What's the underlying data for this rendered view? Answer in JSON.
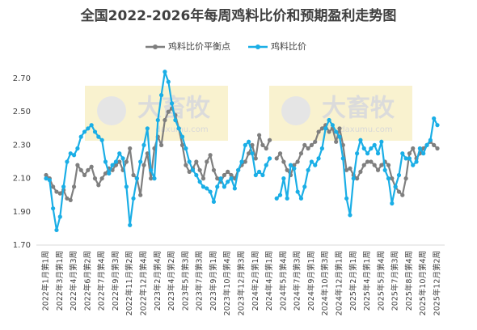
{
  "chart_data": {
    "type": "line",
    "title": "全国2022-2026年每周鸡料比价和预期盈利走势图",
    "watermark": [
      "大畜牧",
      "daxumu.com"
    ],
    "categories": [
      "2022年1月第1周",
      null,
      null,
      null,
      "2022年3月第1周",
      null,
      null,
      null,
      "2022年4月第3周",
      null,
      null,
      null,
      "2022年6月第2周",
      null,
      null,
      null,
      "2022年7月第4周",
      null,
      null,
      null,
      "2022年9月第3周",
      null,
      null,
      null,
      "2022年11月第2周",
      null,
      null,
      null,
      "2022年12月第4周",
      null,
      null,
      null,
      "2023年2月第4周",
      null,
      null,
      null,
      "2023年4月第2周",
      null,
      null,
      null,
      "2023年5月第3周",
      null,
      null,
      null,
      "2023年7月第3周",
      null,
      null,
      null,
      "2023年9月第1周",
      null,
      null,
      null,
      "2023年10月第4周",
      null,
      null,
      null,
      "2023年12月第3周",
      null,
      null,
      null,
      "2024年2月第1周",
      null,
      null,
      null,
      "2024年4月第1周",
      null,
      null,
      null,
      "2024年5月第4周",
      null,
      null,
      null,
      "2024年7月第3周",
      null,
      null,
      null,
      "2024年9月第1周",
      null,
      null,
      null,
      "2024年10月第3周",
      null,
      null,
      null,
      "2024年12月第1周",
      null,
      null,
      null,
      "2025年2月第1周",
      null,
      null,
      null,
      "2025年4月第1周",
      null,
      null,
      null,
      "2025年5月第4周",
      null,
      null,
      null,
      "2025年7月第3周",
      null,
      null,
      null,
      "2025年8月第4周",
      null,
      null,
      null,
      "2025年10月第4周",
      null,
      null,
      null,
      "2025年12月第2周"
    ],
    "series": [
      {
        "name": "鸡料比价平衡点",
        "color": "#7f7f7f",
        "values": [
          2.12,
          2.1,
          2.05,
          2.02,
          2.01,
          2.03,
          1.98,
          1.97,
          2.05,
          2.18,
          2.15,
          2.12,
          2.15,
          2.17,
          2.1,
          2.06,
          2.1,
          2.13,
          2.16,
          2.15,
          2.18,
          2.2,
          2.15,
          2.2,
          2.28,
          2.12,
          2.1,
          2.0,
          2.18,
          2.25,
          2.1,
          2.28,
          2.35,
          2.3,
          2.45,
          2.5,
          2.52,
          2.48,
          2.4,
          2.3,
          2.18,
          2.14,
          2.16,
          2.2,
          2.15,
          2.1,
          2.2,
          2.24,
          2.15,
          2.1,
          2.08,
          2.12,
          2.14,
          2.12,
          2.1,
          2.15,
          2.18,
          2.2,
          2.25,
          2.3,
          2.22,
          2.36,
          2.3,
          2.28,
          2.33,
          null,
          2.22,
          2.25,
          2.2,
          2.15,
          2.12,
          2.18,
          2.2,
          2.25,
          2.3,
          2.28,
          2.3,
          2.32,
          2.38,
          2.4,
          2.42,
          2.38,
          2.4,
          2.32,
          2.4,
          2.3,
          2.15,
          2.16,
          2.12,
          2.1,
          2.14,
          2.18,
          2.2,
          2.2,
          2.18,
          2.15,
          2.18,
          2.2,
          2.18,
          2.1,
          2.05,
          2.02,
          2.0,
          2.1,
          2.25,
          2.28,
          2.22,
          2.25,
          2.28,
          2.3,
          2.32,
          2.3,
          2.28
        ]
      },
      {
        "name": "鸡料比价",
        "color": "#1aaee6",
        "values": [
          2.1,
          2.09,
          1.92,
          1.79,
          1.87,
          2.05,
          2.2,
          2.25,
          2.24,
          2.28,
          2.35,
          2.38,
          2.4,
          2.42,
          2.38,
          2.35,
          2.33,
          2.2,
          2.13,
          2.18,
          2.2,
          2.25,
          2.22,
          2.05,
          1.82,
          1.98,
          2.1,
          2.2,
          2.3,
          2.4,
          2.15,
          2.1,
          2.45,
          2.6,
          2.74,
          2.68,
          2.55,
          2.45,
          2.4,
          2.35,
          2.28,
          2.2,
          2.15,
          2.12,
          2.08,
          2.05,
          2.04,
          2.02,
          1.96,
          2.05,
          2.1,
          2.05,
          2.08,
          2.1,
          2.04,
          2.15,
          2.2,
          2.3,
          2.32,
          2.25,
          2.12,
          2.14,
          2.12,
          2.18,
          2.22,
          null,
          1.98,
          2.0,
          2.1,
          1.98,
          2.18,
          2.16,
          2.02,
          1.98,
          2.05,
          2.15,
          2.2,
          2.18,
          2.22,
          2.28,
          2.4,
          2.45,
          2.42,
          2.38,
          2.35,
          2.22,
          1.98,
          1.88,
          2.1,
          2.25,
          2.33,
          2.28,
          2.25,
          2.28,
          2.3,
          2.25,
          2.32,
          2.15,
          2.1,
          1.95,
          2.05,
          2.12,
          2.25,
          2.22,
          2.22,
          2.18,
          2.2,
          2.28,
          2.25,
          2.3,
          2.33,
          2.46,
          2.42
        ]
      }
    ],
    "ylim": [
      1.7,
      2.7
    ],
    "yticks": [
      {
        "value": 1.7,
        "label": "1.70"
      },
      {
        "value": 1.9,
        "label": "1.90"
      },
      {
        "value": 2.1,
        "label": "2.10"
      },
      {
        "value": 2.3,
        "label": "2.30"
      },
      {
        "value": 2.5,
        "label": "2.50"
      },
      {
        "value": 2.7,
        "label": "2.70"
      }
    ],
    "grid": false,
    "legend": "top"
  }
}
